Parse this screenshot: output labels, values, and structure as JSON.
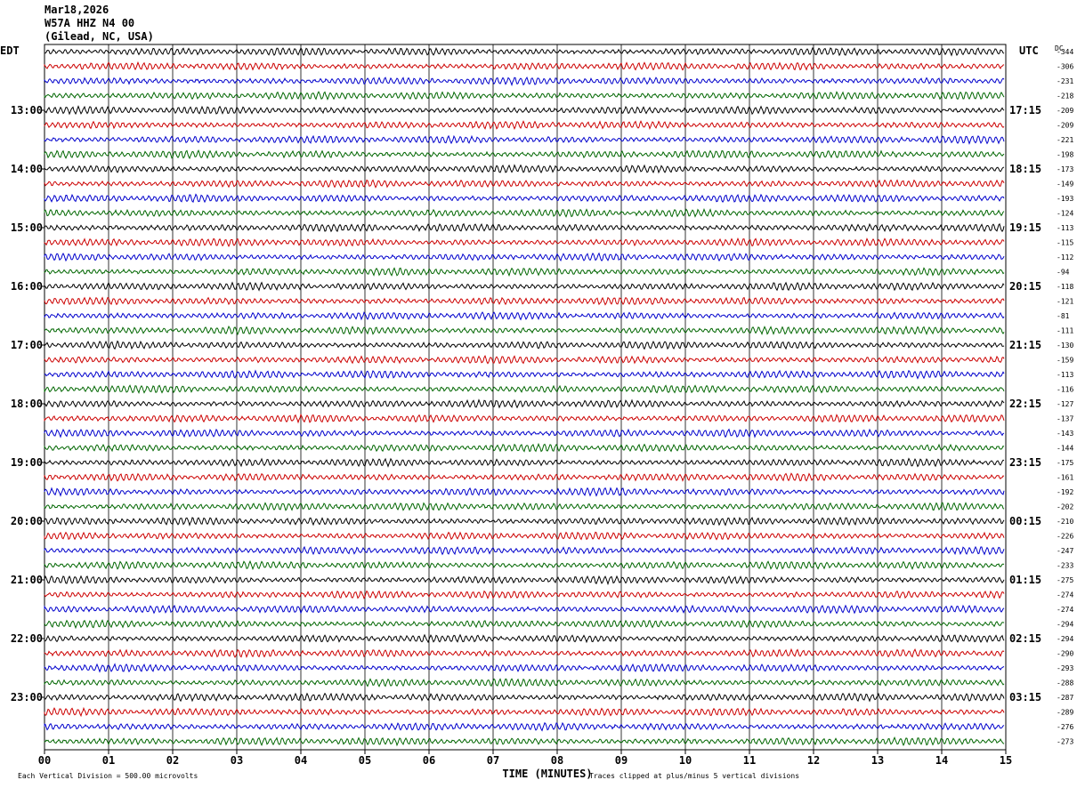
{
  "header": {
    "date": "Mar18,2026",
    "station": "W57A HHZ N4 00",
    "location": "(Gilead, NC, USA)"
  },
  "chart_data": {
    "type": "line",
    "left_timezone": "EDT",
    "right_timezone": "UTC",
    "dc_label": "DC",
    "xlabel": "TIME (MINUTES)",
    "xlim": [
      0,
      15
    ],
    "x_ticks": [
      "00",
      "01",
      "02",
      "03",
      "04",
      "05",
      "06",
      "07",
      "08",
      "09",
      "10",
      "11",
      "12",
      "13",
      "14",
      "15"
    ],
    "left_hour_labels": [
      "13:00",
      "14:00",
      "15:00",
      "16:00",
      "17:00",
      "18:00",
      "19:00",
      "20:00",
      "21:00",
      "22:00",
      "23:00"
    ],
    "right_hour_labels": [
      "17:15",
      "18:15",
      "19:15",
      "20:15",
      "21:15",
      "22:15",
      "23:15",
      "00:15",
      "01:15",
      "02:15",
      "03:15"
    ],
    "trace_colors": [
      "#000000",
      "#cc0000",
      "#0000cc",
      "#006600"
    ],
    "dc_offsets": [
      -344,
      -306,
      -231,
      -218,
      -209,
      -209,
      -221,
      -198,
      -173,
      -149,
      -193,
      -124,
      -113,
      -115,
      -112,
      -94,
      -118,
      -121,
      -81,
      -111,
      -130,
      -159,
      -113,
      -116,
      -127,
      -137,
      -143,
      -144,
      -175,
      -161,
      -192,
      -202,
      -210,
      -226,
      -247,
      -233,
      -275,
      -274,
      -274,
      -294,
      -294,
      -290,
      -293,
      -288,
      -287,
      -289,
      -276,
      -273
    ],
    "footer_left": "Each Vertical Division =  500.00 microvolts",
    "footer_right": "Traces clipped at plus/minus 5 vertical divisions",
    "grid": true
  }
}
